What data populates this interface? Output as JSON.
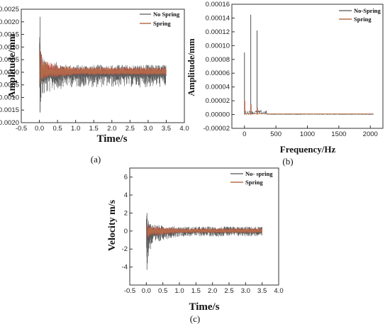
{
  "chart_data": [
    {
      "panel_label": "(a)",
      "type": "line",
      "xlabel": "Time/s",
      "ylabel": "Amplitude/mm",
      "xlim": [
        -0.5,
        4.0
      ],
      "ylim": [
        -0.002,
        0.0025
      ],
      "x_ticks": [
        "-0.5",
        "0.0",
        "0.5",
        "1.0",
        "1.5",
        "2.0",
        "2.5",
        "3.0",
        "3.5",
        "4.0"
      ],
      "y_ticks": [
        "-0.0020",
        "-0.0015",
        "-0.0010",
        "-0.0005",
        "0.0000",
        "0.0005",
        "0.0010",
        "0.0015",
        "0.0020",
        "0.0025"
      ],
      "legend_position": "top-right",
      "grid": false,
      "series": [
        {
          "name": "No Spring",
          "color": "#555555",
          "x": [
            0.0,
            0.02,
            0.05,
            0.1,
            0.2,
            0.3,
            0.5,
            0.75,
            1.0,
            1.5,
            2.0,
            2.5,
            3.0,
            3.5
          ],
          "y_max": [
            0.0022,
            0.0016,
            0.001,
            0.0006,
            0.0004,
            0.0004,
            0.0004,
            0.0003,
            0.0003,
            0.0003,
            0.0003,
            0.0003,
            0.0003,
            0.0003
          ],
          "y_min": [
            -0.0017,
            -0.0015,
            -0.0012,
            -0.001,
            -0.0009,
            -0.0008,
            -0.0007,
            -0.0006,
            -0.0006,
            -0.0006,
            -0.0006,
            -0.0006,
            -0.0006,
            -0.0006
          ]
        },
        {
          "name": "Spring",
          "color": "#b5704a",
          "x": [
            0.0,
            0.05,
            0.1,
            0.3,
            0.5,
            1.0,
            1.5,
            2.0,
            2.5,
            3.0,
            3.5
          ],
          "y_max": [
            0.0012,
            0.0008,
            0.0005,
            0.0004,
            0.0003,
            0.0002,
            0.0002,
            0.0002,
            0.0002,
            0.0002,
            0.0002
          ],
          "y_min": [
            -0.0006,
            -0.0004,
            -0.0003,
            -0.0002,
            -0.0002,
            -0.0001,
            -0.0001,
            -0.0001,
            -0.0001,
            -0.0001,
            -0.0001
          ]
        }
      ]
    },
    {
      "panel_label": "(b)",
      "type": "line",
      "xlabel": "Frequency/Hz",
      "ylabel": "Amplitude/mm",
      "xlim": [
        -200,
        2200
      ],
      "ylim": [
        -2e-05,
        0.00016
      ],
      "x_ticks": [
        "0",
        "500",
        "1000",
        "1500",
        "2000"
      ],
      "y_ticks": [
        "-0.00002",
        "0.00000",
        "0.00002",
        "0.00004",
        "0.00006",
        "0.00008",
        "0.00010",
        "0.00012",
        "0.00014",
        "0.00016"
      ],
      "legend_position": "top-right",
      "grid": false,
      "series": [
        {
          "name": "No-Spring",
          "color": "#555555",
          "peaks_x": [
            0,
            100,
            200
          ],
          "peaks_y": [
            9e-05,
            0.000145,
            0.000122
          ]
        },
        {
          "name": "Spring",
          "color": "#b5704a",
          "peaks_x": [
            0,
            100,
            200
          ],
          "peaks_y": [
            2e-05,
            1.5e-05,
            1e-05
          ]
        }
      ]
    },
    {
      "panel_label": "(c)",
      "type": "line",
      "xlabel": "Time/s",
      "ylabel": "Velocity m/s",
      "xlim": [
        -0.5,
        4.0
      ],
      "ylim": [
        -6,
        7
      ],
      "x_ticks": [
        "-0.5",
        "0.0",
        "0.5",
        "1.0",
        "1.5",
        "2.0",
        "2.5",
        "3.0",
        "3.5",
        "4.0"
      ],
      "y_ticks": [
        "-4",
        "-2",
        "0",
        "2",
        "4",
        "6"
      ],
      "legend_position": "top-right",
      "grid": false,
      "series": [
        {
          "name": "No- spring",
          "color": "#555555",
          "x": [
            0.0,
            0.05,
            0.1,
            0.2,
            0.5,
            1.0,
            1.5,
            2.0,
            2.5,
            3.0,
            3.5
          ],
          "y_max": [
            2.0,
            1.5,
            1.0,
            0.8,
            0.6,
            0.5,
            0.5,
            0.5,
            0.5,
            0.5,
            0.5
          ],
          "y_min": [
            -4.3,
            -3.5,
            -2.5,
            -2.0,
            -1.0,
            -0.6,
            -0.6,
            -0.6,
            -0.6,
            -0.6,
            -0.6
          ]
        },
        {
          "name": "Spring",
          "color": "#b5704a",
          "x": [
            0.0,
            0.05,
            0.1,
            0.2,
            0.5,
            1.0,
            1.5,
            2.0,
            2.5,
            3.0,
            3.5
          ],
          "y_max": [
            1.0,
            0.8,
            0.6,
            0.5,
            0.4,
            0.3,
            0.3,
            0.3,
            0.3,
            0.3,
            0.3
          ],
          "y_min": [
            -1.2,
            -0.8,
            -0.6,
            -0.5,
            -0.4,
            -0.2,
            -0.2,
            -0.2,
            -0.2,
            -0.2,
            -0.2
          ]
        }
      ]
    }
  ]
}
